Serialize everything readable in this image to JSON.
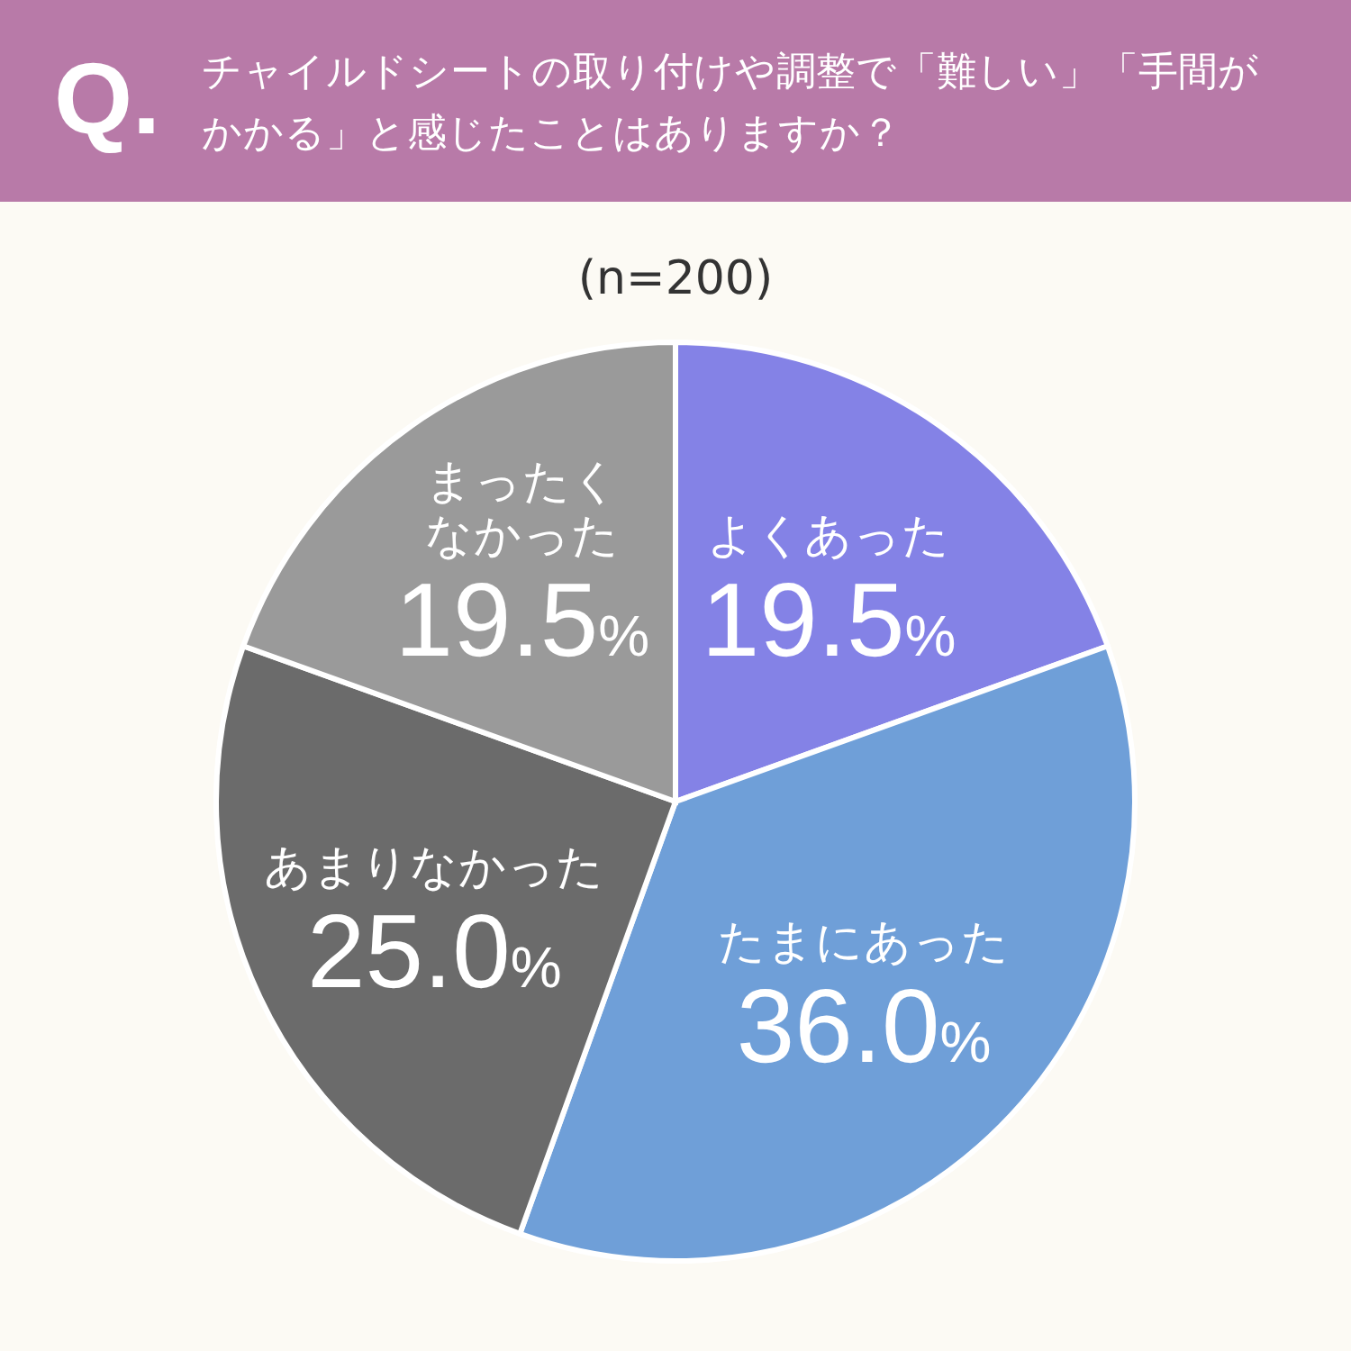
{
  "chart_data": {
    "type": "pie",
    "title": "チャイルドシートの取り付けや調整で「難しい」「手間がかかる」と感じたことはありますか？",
    "subtitle": "(n=200)",
    "annotations": [
      "Q."
    ],
    "categories": [
      "よくあった",
      "たまにあった",
      "あまりなかった",
      "まったくなかった"
    ],
    "values": [
      19.5,
      36.0,
      25.0,
      19.5
    ],
    "value_labels": [
      "19.5%",
      "36.0%",
      "25.0%",
      "19.5%"
    ],
    "colors": [
      "#8482e6",
      "#6f9fd8",
      "#6b6b6b",
      "#9a9a9a"
    ]
  }
}
